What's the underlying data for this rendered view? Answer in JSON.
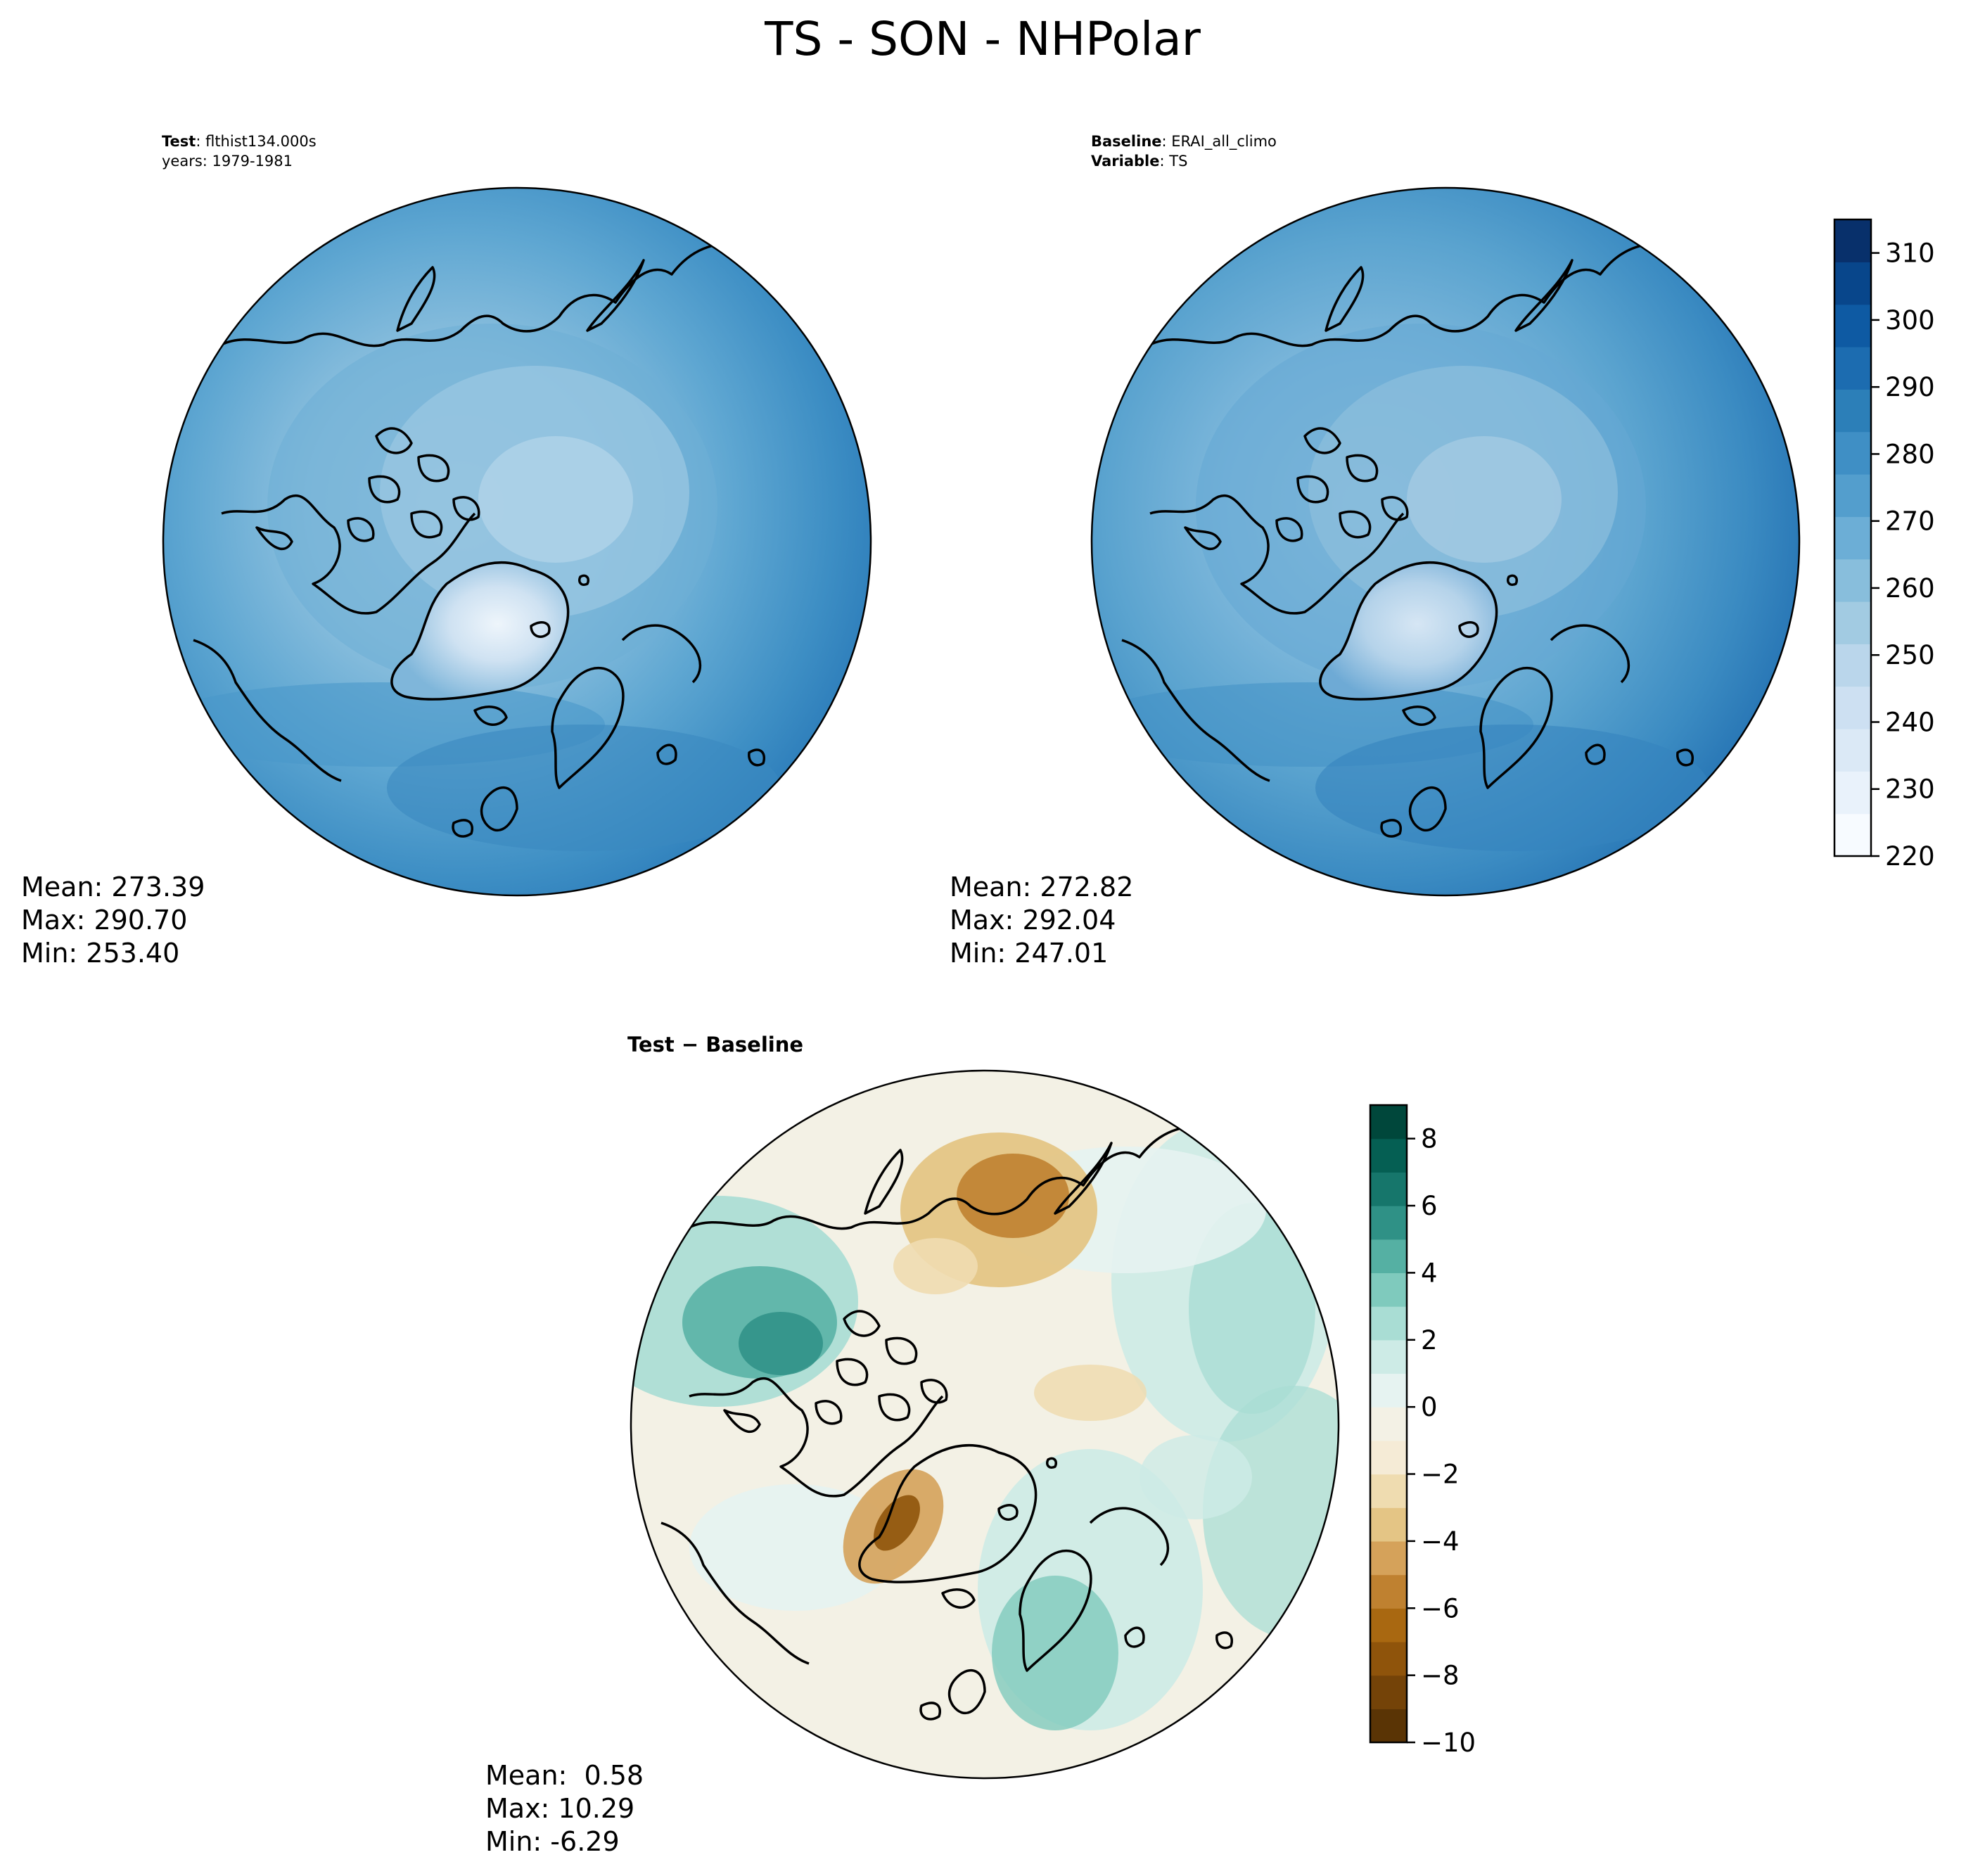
{
  "figure": {
    "title": "TS - SON - NHPolar"
  },
  "colors": {
    "map_outline": "#000000",
    "coast": "#000000",
    "blues_scale": [
      "#f7fbff",
      "#e9f2fb",
      "#dbe9f6",
      "#cde0f2",
      "#bad6eb",
      "#a2cbe2",
      "#88bedc",
      "#6caed6",
      "#539ecd",
      "#3f8fc5",
      "#2c7fb8",
      "#1c6cb0",
      "#0e5aa3",
      "#08468b",
      "#08306b"
    ],
    "diff_scale": [
      "#5a3405",
      "#744308",
      "#8f540b",
      "#a96811",
      "#bf8130",
      "#d5a25a",
      "#e4c585",
      "#efdcb0",
      "#f5ebd6",
      "#f3f1e5",
      "#e6f3f1",
      "#cdebe6",
      "#a9ddd4",
      "#7fcabd",
      "#55b0a3",
      "#2f9186",
      "#16766b",
      "#055f53",
      "#00473b"
    ]
  },
  "panels": {
    "test": {
      "label_bold": "Test",
      "label_value": "flthist134.000s",
      "line2": "years: 1979-1981",
      "stats": [
        "Mean: 273.39",
        "Max: 290.70",
        "Min: 253.40"
      ]
    },
    "baseline": {
      "label_bold": "Baseline",
      "label_value": "ERAI_all_climo",
      "line2_bold": "Variable",
      "line2_value": "TS",
      "stats": [
        "Mean: 272.82",
        "Max: 292.04",
        "Min: 247.01"
      ]
    },
    "diff": {
      "title": "Test − Baseline",
      "stats": [
        "Mean:  0.58",
        "Max: 10.29",
        "Min: -6.29"
      ]
    }
  },
  "colorbars": {
    "top": {
      "min": 220,
      "max": 315,
      "ticks": [
        "220",
        "230",
        "240",
        "250",
        "260",
        "270",
        "280",
        "290",
        "300",
        "310"
      ],
      "tick_values": [
        220,
        230,
        240,
        250,
        260,
        270,
        280,
        290,
        300,
        310
      ]
    },
    "bottom": {
      "min": -10,
      "max": 9,
      "ticks": [
        "−10",
        "−8",
        "−6",
        "−4",
        "−2",
        "0",
        "2",
        "4",
        "6",
        "8"
      ],
      "tick_values": [
        -10,
        -8,
        -6,
        -4,
        -2,
        0,
        2,
        4,
        6,
        8
      ]
    }
  }
}
